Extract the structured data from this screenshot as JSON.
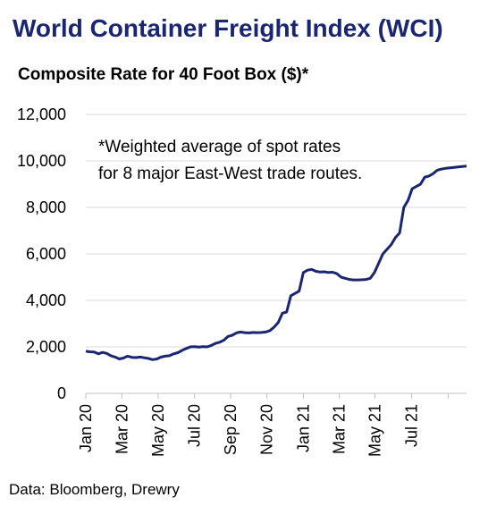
{
  "chart_data": {
    "type": "line",
    "title": "World Container Freight Index (WCI)",
    "subtitle": "Composite Rate for 40 Foot Box ($)*",
    "annotation_lines": [
      "*Weighted average of spot rates",
      "for 8 major East-West trade routes."
    ],
    "source": "Data: Bloomberg, Drewry",
    "ylim": [
      0,
      12000
    ],
    "yticks": [
      0,
      2000,
      4000,
      6000,
      8000,
      10000,
      12000
    ],
    "ytick_labels": [
      "0",
      "2,000",
      "4,000",
      "6,000",
      "8,000",
      "10,000",
      "12,000"
    ],
    "xlim": [
      0,
      91
    ],
    "xticks": [
      0,
      8.6,
      17.3,
      26,
      34.6,
      43.3,
      52,
      60.6,
      69.1,
      77.9,
      86.6
    ],
    "xtick_labels": [
      "Jan 20",
      "Mar 20",
      "May 20",
      "Jul 20",
      "Sep 20",
      "Nov 20",
      "Jan 21",
      "Mar 21",
      "May 21",
      "Jul 21",
      ""
    ],
    "grid": true,
    "legend": "none",
    "line_color": "#1b2670",
    "series": [
      {
        "x": [
          0,
          1,
          2,
          3,
          4,
          5,
          6,
          7,
          8,
          9,
          10,
          11,
          12,
          13,
          14,
          15,
          16,
          17,
          18,
          19,
          20,
          21,
          22,
          23,
          24,
          25,
          26,
          27,
          28,
          29,
          30,
          31,
          32,
          33,
          34,
          35,
          36,
          37,
          38,
          39,
          40,
          41,
          42,
          43,
          44,
          45,
          46,
          47,
          48,
          49,
          50,
          51,
          52,
          53,
          54,
          55,
          56,
          57,
          58,
          59,
          60,
          61,
          62,
          63,
          64,
          65,
          66,
          67,
          68,
          69,
          70,
          71,
          72,
          73,
          74,
          75,
          76,
          77,
          78,
          79,
          80,
          81,
          82,
          83,
          84,
          85,
          86,
          87,
          88,
          89,
          90,
          91
        ],
        "values": [
          1810,
          1790,
          1780,
          1700,
          1760,
          1720,
          1620,
          1560,
          1480,
          1520,
          1600,
          1550,
          1540,
          1560,
          1530,
          1500,
          1450,
          1480,
          1560,
          1600,
          1620,
          1700,
          1750,
          1850,
          1930,
          2000,
          2010,
          1990,
          2010,
          2000,
          2060,
          2150,
          2200,
          2290,
          2450,
          2500,
          2600,
          2640,
          2610,
          2600,
          2620,
          2610,
          2620,
          2640,
          2700,
          2850,
          3050,
          3450,
          3500,
          4200,
          4300,
          4400,
          5200,
          5300,
          5330,
          5250,
          5220,
          5230,
          5200,
          5210,
          5150,
          5000,
          4950,
          4900,
          4880,
          4880,
          4890,
          4900,
          4950,
          5200,
          5600,
          6000,
          6200,
          6400,
          6700,
          6900,
          8000,
          8300,
          8800,
          8900,
          9000,
          9300,
          9350,
          9450,
          9600,
          9650,
          9680,
          9700,
          9720,
          9740,
          9760,
          9780
        ]
      }
    ]
  }
}
